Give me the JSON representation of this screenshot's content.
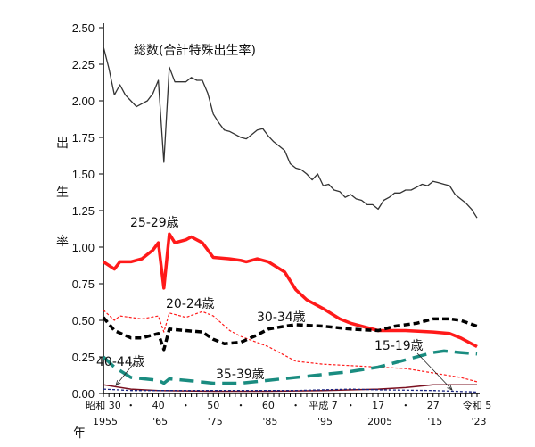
{
  "chart_data": {
    "type": "line",
    "ylabel": "出生率",
    "xlabel": "年",
    "ylim": [
      0,
      2.5
    ],
    "xlim": [
      1955,
      2023
    ],
    "yticks": [
      "0.00",
      "0.25",
      "0.50",
      "0.75",
      "1.00",
      "1.25",
      "1.50",
      "1.75",
      "2.00",
      "2.25",
      "2.50"
    ],
    "xtick_labels": [
      {
        "year": 1955,
        "era": "昭和 30",
        "western": "1955"
      },
      {
        "year": 1960,
        "era": "・",
        "western": ""
      },
      {
        "year": 1965,
        "era": "40",
        "western": "'65"
      },
      {
        "year": 1970,
        "era": "・",
        "western": ""
      },
      {
        "year": 1975,
        "era": "50",
        "western": "'75"
      },
      {
        "year": 1980,
        "era": "・",
        "western": ""
      },
      {
        "year": 1985,
        "era": "60",
        "western": "'85"
      },
      {
        "year": 1990,
        "era": "・",
        "western": ""
      },
      {
        "year": 1995,
        "era": "平成 7",
        "western": "'95"
      },
      {
        "year": 2000,
        "era": "・",
        "western": ""
      },
      {
        "year": 2005,
        "era": "17",
        "western": "2005"
      },
      {
        "year": 2010,
        "era": "・",
        "western": ""
      },
      {
        "year": 2015,
        "era": "27",
        "western": "'15"
      },
      {
        "year": 2023,
        "era": "令和 5",
        "western": "'23"
      }
    ],
    "grid": false,
    "series": [
      {
        "name": "総数(合計特殊出生率)",
        "color": "#333333",
        "style": "solid-thin",
        "x": [
          1955,
          1956,
          1957,
          1958,
          1959,
          1960,
          1961,
          1962,
          1963,
          1964,
          1965,
          1966,
          1967,
          1968,
          1969,
          1970,
          1971,
          1972,
          1973,
          1974,
          1975,
          1976,
          1977,
          1978,
          1979,
          1980,
          1981,
          1982,
          1983,
          1984,
          1985,
          1986,
          1987,
          1988,
          1989,
          1990,
          1991,
          1992,
          1993,
          1994,
          1995,
          1996,
          1997,
          1998,
          1999,
          2000,
          2001,
          2002,
          2003,
          2004,
          2005,
          2006,
          2007,
          2008,
          2009,
          2010,
          2011,
          2012,
          2013,
          2014,
          2015,
          2016,
          2017,
          2018,
          2019,
          2020,
          2021,
          2022,
          2023
        ],
        "y": [
          2.37,
          2.22,
          2.04,
          2.11,
          2.04,
          2.0,
          1.96,
          1.98,
          2.0,
          2.05,
          2.14,
          1.58,
          2.23,
          2.13,
          2.13,
          2.13,
          2.16,
          2.14,
          2.14,
          2.05,
          1.91,
          1.85,
          1.8,
          1.79,
          1.77,
          1.75,
          1.74,
          1.77,
          1.8,
          1.81,
          1.76,
          1.72,
          1.69,
          1.66,
          1.57,
          1.54,
          1.53,
          1.5,
          1.46,
          1.5,
          1.42,
          1.43,
          1.39,
          1.38,
          1.34,
          1.36,
          1.33,
          1.32,
          1.29,
          1.29,
          1.26,
          1.32,
          1.34,
          1.37,
          1.37,
          1.39,
          1.39,
          1.41,
          1.43,
          1.42,
          1.45,
          1.44,
          1.43,
          1.42,
          1.36,
          1.33,
          1.3,
          1.26,
          1.2
        ]
      },
      {
        "name": "25-29歳",
        "color": "#ff1a1a",
        "style": "solid-thick",
        "x": [
          1955,
          1957,
          1958,
          1960,
          1962,
          1964,
          1965,
          1966,
          1967,
          1968,
          1970,
          1971,
          1972,
          1973,
          1975,
          1978,
          1980,
          1981,
          1983,
          1985,
          1988,
          1990,
          1992,
          1995,
          1998,
          2000,
          2005,
          2010,
          2015,
          2018,
          2020,
          2023
        ],
        "y": [
          0.9,
          0.85,
          0.9,
          0.9,
          0.92,
          0.98,
          1.03,
          0.72,
          1.09,
          1.03,
          1.05,
          1.07,
          1.05,
          1.03,
          0.93,
          0.92,
          0.91,
          0.9,
          0.92,
          0.9,
          0.83,
          0.71,
          0.64,
          0.58,
          0.51,
          0.48,
          0.43,
          0.43,
          0.42,
          0.41,
          0.38,
          0.32
        ]
      },
      {
        "name": "20-24歳",
        "color": "#ff1a1a",
        "style": "dashed-thin",
        "x": [
          1955,
          1957,
          1958,
          1962,
          1965,
          1966,
          1967,
          1970,
          1973,
          1975,
          1978,
          1980,
          1985,
          1990,
          1995,
          2000,
          2005,
          2010,
          2015,
          2020,
          2023
        ],
        "y": [
          0.57,
          0.5,
          0.53,
          0.51,
          0.53,
          0.42,
          0.55,
          0.52,
          0.56,
          0.53,
          0.43,
          0.39,
          0.32,
          0.22,
          0.2,
          0.19,
          0.18,
          0.17,
          0.14,
          0.11,
          0.08
        ]
      },
      {
        "name": "30-34歳",
        "color": "#000000",
        "style": "dashed-thick",
        "x": [
          1955,
          1957,
          1960,
          1962,
          1965,
          1966,
          1967,
          1970,
          1973,
          1975,
          1977,
          1980,
          1983,
          1985,
          1988,
          1990,
          1995,
          2000,
          2005,
          2008,
          2012,
          2015,
          2018,
          2020,
          2023
        ],
        "y": [
          0.52,
          0.43,
          0.38,
          0.38,
          0.41,
          0.3,
          0.44,
          0.43,
          0.42,
          0.37,
          0.34,
          0.35,
          0.4,
          0.44,
          0.46,
          0.47,
          0.46,
          0.44,
          0.43,
          0.46,
          0.48,
          0.51,
          0.51,
          0.5,
          0.46
        ]
      },
      {
        "name": "35-39歳",
        "color": "#1a8c80",
        "style": "long-dash",
        "x": [
          1955,
          1957,
          1960,
          1965,
          1966,
          1967,
          1970,
          1975,
          1980,
          1985,
          1990,
          1995,
          2000,
          2005,
          2010,
          2015,
          2017,
          2020,
          2023
        ],
        "y": [
          0.25,
          0.18,
          0.11,
          0.09,
          0.07,
          0.1,
          0.09,
          0.07,
          0.07,
          0.09,
          0.11,
          0.13,
          0.15,
          0.18,
          0.23,
          0.28,
          0.29,
          0.28,
          0.27
        ]
      },
      {
        "name": "40-44歳",
        "color": "#7a1020",
        "style": "solid-thin",
        "x": [
          1955,
          1960,
          1965,
          1975,
          1985,
          1995,
          2005,
          2010,
          2015,
          2023
        ],
        "y": [
          0.06,
          0.03,
          0.02,
          0.015,
          0.015,
          0.02,
          0.03,
          0.04,
          0.06,
          0.06
        ]
      },
      {
        "name": "15-19歳",
        "color": "#1a237e",
        "style": "dotted",
        "x": [
          1955,
          1960,
          1970,
          1980,
          1990,
          2000,
          2005,
          2015,
          2023
        ],
        "y": [
          0.03,
          0.02,
          0.02,
          0.02,
          0.02,
          0.03,
          0.025,
          0.02,
          0.01
        ]
      }
    ]
  }
}
